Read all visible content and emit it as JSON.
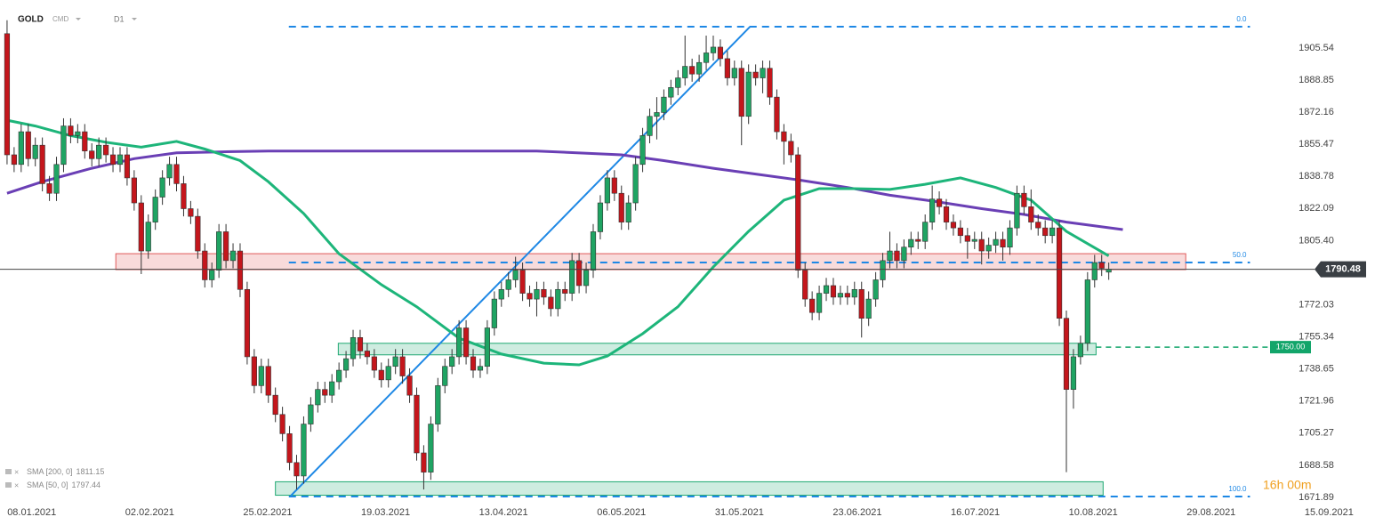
{
  "chart_data": {
    "type": "candlestick",
    "title": "GOLD",
    "subtitle": "CMD",
    "timeframe": "D1",
    "timer": "16h 00m",
    "up_color": "#1fa463",
    "down_color": "#c4161c",
    "open": [
      1913,
      1850,
      1845,
      1862,
      1848,
      1855,
      1835,
      1830,
      1845,
      1865,
      1860,
      1862,
      1852,
      1848,
      1855,
      1850,
      1845,
      1850,
      1838,
      1825,
      1800,
      1815,
      1828,
      1838,
      1845,
      1835,
      1822,
      1818,
      1800,
      1785,
      1790,
      1810,
      1795,
      1800,
      1780,
      1745,
      1730,
      1740,
      1725,
      1715,
      1705,
      1690,
      1683,
      1710,
      1720,
      1728,
      1725,
      1732,
      1738,
      1744,
      1755,
      1748,
      1745,
      1738,
      1733,
      1740,
      1745,
      1735,
      1725,
      1695,
      1685,
      1710,
      1730,
      1740,
      1745,
      1760,
      1745,
      1738,
      1740,
      1760,
      1775,
      1780,
      1785,
      1790,
      1778,
      1775,
      1780,
      1776,
      1770,
      1780,
      1778,
      1795,
      1782,
      1790,
      1810,
      1825,
      1838,
      1830,
      1815,
      1825,
      1845,
      1860,
      1870,
      1872,
      1880,
      1885,
      1890,
      1896,
      1892,
      1898,
      1903,
      1906,
      1900,
      1890,
      1895,
      1870,
      1893,
      1890,
      1895,
      1880,
      1862,
      1857,
      1850,
      1790,
      1775,
      1768,
      1778,
      1782,
      1776,
      1778,
      1776,
      1780,
      1765,
      1775,
      1785,
      1795,
      1800,
      1795,
      1802,
      1806,
      1805,
      1815,
      1827,
      1823,
      1815,
      1812,
      1808,
      1805,
      1806,
      1800,
      1803,
      1806,
      1802,
      1812,
      1830,
      1823,
      1815,
      1812,
      1808,
      1812,
      1765,
      1728,
      1745,
      1752,
      1785,
      1794,
      1789
    ],
    "high": [
      1920,
      1854,
      1866,
      1866,
      1859,
      1859,
      1839,
      1849,
      1869,
      1869,
      1866,
      1866,
      1856,
      1859,
      1859,
      1854,
      1854,
      1854,
      1842,
      1829,
      1819,
      1832,
      1842,
      1849,
      1849,
      1839,
      1826,
      1822,
      1804,
      1794,
      1814,
      1814,
      1804,
      1804,
      1784,
      1749,
      1744,
      1744,
      1729,
      1719,
      1709,
      1694,
      1714,
      1724,
      1732,
      1732,
      1736,
      1742,
      1748,
      1759,
      1759,
      1752,
      1749,
      1742,
      1744,
      1749,
      1749,
      1739,
      1729,
      1699,
      1714,
      1734,
      1744,
      1749,
      1764,
      1764,
      1749,
      1744,
      1764,
      1779,
      1784,
      1789,
      1797,
      1794,
      1782,
      1784,
      1784,
      1780,
      1784,
      1784,
      1799,
      1799,
      1794,
      1814,
      1829,
      1842,
      1842,
      1834,
      1829,
      1849,
      1864,
      1874,
      1880,
      1884,
      1889,
      1894,
      1912,
      1900,
      1902,
      1912,
      1912,
      1910,
      1904,
      1899,
      1899,
      1897,
      1897,
      1899,
      1899,
      1884,
      1866,
      1861,
      1854,
      1794,
      1779,
      1782,
      1786,
      1786,
      1782,
      1782,
      1784,
      1784,
      1779,
      1789,
      1799,
      1810,
      1804,
      1806,
      1810,
      1810,
      1819,
      1834,
      1831,
      1827,
      1819,
      1816,
      1812,
      1810,
      1810,
      1807,
      1810,
      1810,
      1816,
      1834,
      1834,
      1832,
      1819,
      1816,
      1816,
      1816,
      1769,
      1749,
      1756,
      1789,
      1798,
      1798,
      1794
    ],
    "low": [
      1845,
      1841,
      1841,
      1844,
      1844,
      1831,
      1826,
      1826,
      1841,
      1856,
      1856,
      1848,
      1844,
      1844,
      1846,
      1841,
      1841,
      1834,
      1821,
      1788,
      1796,
      1811,
      1824,
      1834,
      1831,
      1818,
      1814,
      1796,
      1781,
      1781,
      1786,
      1791,
      1791,
      1776,
      1741,
      1726,
      1726,
      1721,
      1711,
      1701,
      1686,
      1676,
      1679,
      1706,
      1716,
      1721,
      1721,
      1728,
      1734,
      1740,
      1744,
      1741,
      1734,
      1729,
      1729,
      1736,
      1731,
      1721,
      1691,
      1676,
      1681,
      1706,
      1726,
      1736,
      1741,
      1741,
      1734,
      1734,
      1736,
      1756,
      1771,
      1776,
      1781,
      1774,
      1771,
      1766,
      1772,
      1766,
      1766,
      1774,
      1774,
      1778,
      1778,
      1786,
      1806,
      1821,
      1826,
      1811,
      1811,
      1821,
      1841,
      1856,
      1858,
      1868,
      1876,
      1881,
      1886,
      1888,
      1888,
      1894,
      1899,
      1896,
      1886,
      1886,
      1855,
      1866,
      1886,
      1882,
      1876,
      1858,
      1845,
      1846,
      1786,
      1771,
      1764,
      1764,
      1774,
      1772,
      1772,
      1772,
      1772,
      1755,
      1761,
      1771,
      1781,
      1791,
      1791,
      1791,
      1798,
      1801,
      1801,
      1811,
      1819,
      1811,
      1808,
      1804,
      1796,
      1801,
      1793,
      1796,
      1799,
      1795,
      1798,
      1808,
      1819,
      1811,
      1808,
      1804,
      1804,
      1761,
      1685,
      1718,
      1741,
      1748,
      1781,
      1787,
      1785
    ],
    "close": [
      1850,
      1845,
      1862,
      1848,
      1855,
      1835,
      1830,
      1845,
      1865,
      1860,
      1862,
      1852,
      1848,
      1855,
      1850,
      1845,
      1850,
      1838,
      1825,
      1800,
      1815,
      1828,
      1838,
      1845,
      1835,
      1822,
      1818,
      1800,
      1785,
      1790,
      1810,
      1795,
      1800,
      1780,
      1745,
      1730,
      1740,
      1725,
      1715,
      1705,
      1690,
      1683,
      1710,
      1720,
      1728,
      1725,
      1732,
      1738,
      1744,
      1755,
      1748,
      1745,
      1738,
      1733,
      1740,
      1745,
      1735,
      1725,
      1695,
      1685,
      1710,
      1730,
      1740,
      1745,
      1760,
      1745,
      1738,
      1740,
      1760,
      1775,
      1780,
      1785,
      1790,
      1778,
      1775,
      1780,
      1776,
      1770,
      1780,
      1778,
      1795,
      1782,
      1790,
      1810,
      1825,
      1838,
      1830,
      1815,
      1825,
      1845,
      1860,
      1870,
      1872,
      1880,
      1885,
      1890,
      1896,
      1892,
      1898,
      1903,
      1906,
      1900,
      1890,
      1895,
      1870,
      1893,
      1890,
      1895,
      1880,
      1862,
      1857,
      1850,
      1790,
      1775,
      1768,
      1778,
      1782,
      1776,
      1778,
      1776,
      1780,
      1765,
      1775,
      1785,
      1795,
      1800,
      1795,
      1802,
      1806,
      1805,
      1815,
      1827,
      1823,
      1815,
      1812,
      1808,
      1805,
      1806,
      1800,
      1803,
      1806,
      1802,
      1812,
      1830,
      1823,
      1815,
      1812,
      1808,
      1812,
      1765,
      1728,
      1745,
      1752,
      1785,
      1794,
      1791,
      1790.48
    ],
    "xlim": [
      -1,
      193.7
    ],
    "xticks": [
      {
        "value": 3.5,
        "label": "08.01.2021"
      },
      {
        "value": 20.2,
        "label": "02.02.2021"
      },
      {
        "value": 36.9,
        "label": "25.02.2021"
      },
      {
        "value": 53.6,
        "label": "19.03.2021"
      },
      {
        "value": 70.3,
        "label": "13.04.2021"
      },
      {
        "value": 87.0,
        "label": "06.05.2021"
      },
      {
        "value": 103.7,
        "label": "31.05.2021"
      },
      {
        "value": 120.4,
        "label": "23.06.2021"
      },
      {
        "value": 137.1,
        "label": "16.07.2021"
      },
      {
        "value": 153.8,
        "label": "10.08.2021"
      },
      {
        "value": 170.5,
        "label": "29.08.2021"
      },
      {
        "value": 187.2,
        "label": "15.09.2021"
      }
    ],
    "ylim": [
      1667.7,
      1930.5
    ],
    "yticks": [
      1905.54,
      1888.85,
      1872.16,
      1855.47,
      1838.78,
      1822.09,
      {
        "value": 1805.4,
        "label": "1805.40"
      },
      1772.03,
      1755.34,
      1738.65,
      1721.96,
      1705.27,
      1688.58,
      1671.89
    ],
    "series": [
      {
        "name": "SMA [200, 0]",
        "legend_value": "1811.15",
        "color": "#6a3fb5",
        "x": [
          0,
          5,
          12,
          18,
          24,
          30,
          37,
          50,
          63,
          75,
          87,
          93,
          100,
          106,
          112,
          119,
          125,
          131,
          138,
          144,
          150,
          158
        ],
        "values": [
          1830,
          1836,
          1843,
          1848,
          1851,
          1851.5,
          1852,
          1852,
          1852,
          1852,
          1850,
          1847,
          1843,
          1840,
          1837,
          1833,
          1829,
          1826,
          1822,
          1819,
          1815,
          1811.15
        ]
      },
      {
        "name": "SMA [50, 0]",
        "legend_value": "1797.44",
        "color": "#1db57a",
        "x": [
          0,
          4,
          9,
          14,
          19,
          24,
          28,
          33,
          37,
          42,
          47,
          53,
          58,
          64,
          70,
          76,
          81,
          85,
          90,
          95,
          100,
          105,
          110,
          115,
          120,
          125,
          130,
          135,
          140,
          145,
          150,
          156
        ],
        "values": [
          1868,
          1865,
          1860,
          1856.5,
          1854,
          1857,
          1853,
          1847,
          1836,
          1819.5,
          1798.6,
          1782.5,
          1771,
          1754.7,
          1746.4,
          1741.7,
          1740.8,
          1745.4,
          1757,
          1771,
          1791.7,
          1810.2,
          1826.4,
          1832.4,
          1832.4,
          1832,
          1834.7,
          1838,
          1833,
          1826.4,
          1810.2,
          1797.44
        ]
      }
    ],
    "fib": {
      "color": "#1e88e5",
      "x": [
        39.9,
        176
      ],
      "levels": [
        {
          "value": 1916.6,
          "label": "0.0"
        },
        {
          "value": 1794.0,
          "label": "50.0"
        },
        {
          "value": 1672.3,
          "label": "100.0"
        }
      ]
    },
    "trendline": {
      "color": "#1e88e5",
      "x": [
        40.2,
        105.2
      ],
      "y": [
        1672.8,
        1916.6
      ]
    },
    "zones": [
      {
        "color": "#e05a5a",
        "x": [
          15.4,
          166.9
        ],
        "y": [
          1790.3,
          1798.6
        ]
      },
      {
        "color": "#1fa872",
        "x": [
          46.9,
          154.2
        ],
        "y": [
          1746,
          1752
        ]
      },
      {
        "color": "#1fa872",
        "x": [
          38.0,
          155.2
        ],
        "y": [
          1673,
          1680
        ]
      }
    ],
    "level": {
      "value": 1750,
      "label": "1750.00",
      "color": "#12a56a",
      "x": [
        154.2,
        179.1
      ]
    }
  }
}
